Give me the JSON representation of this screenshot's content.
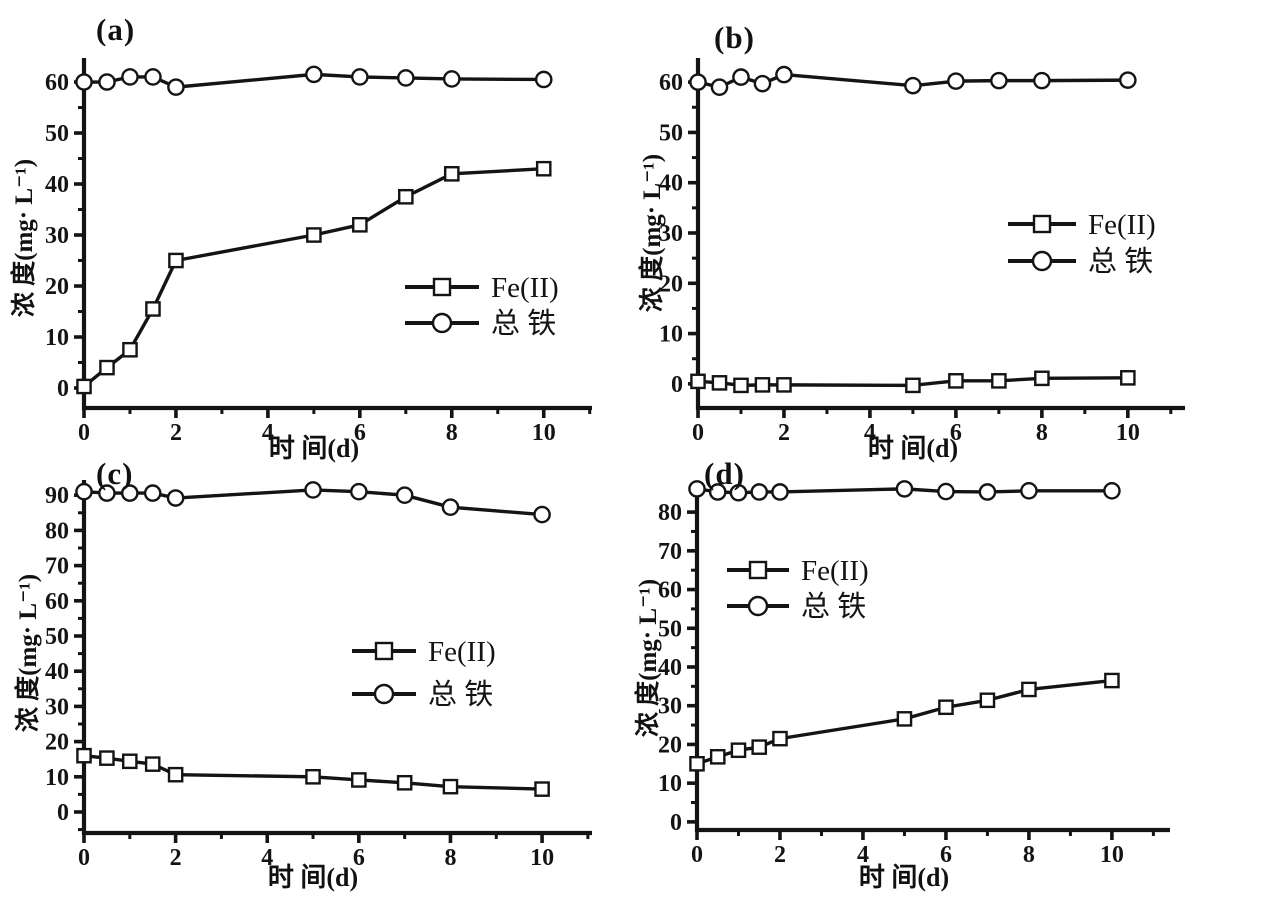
{
  "figure": {
    "background_color": "#ffffff",
    "line_color": "#141414",
    "marker_fill": "#ffffff"
  },
  "chart_data": [
    {
      "id": "a",
      "type": "line",
      "panel_label": "(a)",
      "xlabel": "时 间(d)",
      "ylabel": "浓 度(mg· L⁻¹)",
      "x": [
        0,
        0.5,
        1,
        1.5,
        2,
        5,
        6,
        7,
        8,
        10
      ],
      "series": [
        {
          "name": "Fe(II)",
          "key": "feii",
          "marker": "square",
          "values": [
            0.3,
            4,
            7.5,
            15.5,
            25,
            30,
            32,
            37.5,
            42,
            43
          ]
        },
        {
          "name": "总 铁",
          "key": "total-iron",
          "marker": "circle",
          "values": [
            60,
            60,
            61,
            61,
            59,
            61.5,
            61,
            60.8,
            60.6,
            60.5
          ]
        }
      ],
      "xlim": [
        0,
        11.05
      ],
      "ylim": [
        -3.92,
        64.71
      ],
      "x_major_ticks": [
        0,
        2,
        4,
        6,
        8,
        10
      ],
      "x_minor_ticks": [
        1,
        3,
        5,
        7,
        9,
        11
      ],
      "y_major_ticks": [
        0,
        10,
        20,
        30,
        40,
        50,
        60
      ],
      "y_minor_step": 5,
      "grid": false,
      "legend_position": "center-right"
    },
    {
      "id": "b",
      "type": "line",
      "panel_label": "(b)",
      "xlabel": "时 间(d)",
      "ylabel": "浓 度(mg· L⁻¹)",
      "x": [
        0,
        0.5,
        1,
        1.5,
        2,
        5,
        6,
        7,
        8,
        10
      ],
      "series": [
        {
          "name": "Fe(II)",
          "key": "feii",
          "marker": "square",
          "values": [
            0.5,
            0.2,
            -0.3,
            -0.2,
            -0.2,
            -0.3,
            0.6,
            0.6,
            1.1,
            1.2
          ]
        },
        {
          "name": "总 铁",
          "key": "total-iron",
          "marker": "circle",
          "values": [
            60,
            59,
            61,
            59.7,
            61.5,
            59.3,
            60.2,
            60.3,
            60.3,
            60.4
          ]
        }
      ],
      "xlim": [
        0,
        11.33
      ],
      "ylim": [
        -4.8,
        64.8
      ],
      "x_major_ticks": [
        0,
        2,
        4,
        6,
        8,
        10
      ],
      "x_minor_ticks": [
        1,
        3,
        5,
        7,
        9,
        11
      ],
      "y_major_ticks": [
        0,
        10,
        20,
        30,
        40,
        50,
        60
      ],
      "y_minor_step": 5,
      "grid": false,
      "legend_position": "center-right"
    },
    {
      "id": "c",
      "type": "line",
      "panel_label": "(c)",
      "xlabel": "时 间(d)",
      "ylabel": "浓 度(mg· L⁻¹)",
      "x": [
        0,
        0.5,
        1,
        1.5,
        2,
        5,
        6,
        7,
        8,
        10
      ],
      "series": [
        {
          "name": "Fe(II)",
          "key": "feii",
          "marker": "square",
          "values": [
            16,
            15.3,
            14.4,
            13.6,
            10.6,
            10,
            9.1,
            8.3,
            7.2,
            6.5
          ]
        },
        {
          "name": "总 铁",
          "key": "total-iron",
          "marker": "circle",
          "values": [
            91,
            90.6,
            90.6,
            90.6,
            89.2,
            91.5,
            91,
            90,
            86.6,
            84.5
          ]
        }
      ],
      "xlim": [
        0,
        11.09
      ],
      "ylim": [
        -5.97,
        94.32
      ],
      "x_major_ticks": [
        0,
        2,
        4,
        6,
        8,
        10
      ],
      "x_minor_ticks": [
        1,
        3,
        5,
        7,
        9,
        11
      ],
      "y_major_ticks": [
        0,
        10,
        20,
        30,
        40,
        50,
        60,
        70,
        80,
        90
      ],
      "y_minor_step": 5,
      "grid": false,
      "legend_position": "center-right"
    },
    {
      "id": "d",
      "type": "line",
      "panel_label": "(d)",
      "xlabel": "时 间(d)",
      "ylabel": "浓 度(mg· L⁻¹)",
      "x": [
        0,
        0.5,
        1,
        1.5,
        2,
        5,
        6,
        7,
        8,
        10
      ],
      "series": [
        {
          "name": "Fe(II)",
          "key": "feii",
          "marker": "square",
          "values": [
            15,
            16.8,
            18.5,
            19.3,
            21.5,
            26.6,
            29.6,
            31.4,
            34.2,
            36.5
          ]
        },
        {
          "name": "总 铁",
          "key": "total-iron",
          "marker": "circle",
          "values": [
            86,
            85.2,
            85,
            85.2,
            85.2,
            86,
            85.3,
            85.2,
            85.5,
            85.5
          ]
        }
      ],
      "xlim": [
        0,
        11.4
      ],
      "ylim": [
        -2.1,
        87.0
      ],
      "x_major_ticks": [
        0,
        2,
        4,
        6,
        8,
        10
      ],
      "x_minor_ticks": [
        1,
        3,
        5,
        7,
        9,
        11
      ],
      "y_major_ticks": [
        0,
        10,
        20,
        30,
        40,
        50,
        60,
        70,
        80
      ],
      "y_minor_step": 5,
      "grid": false,
      "legend_position": "upper-left"
    }
  ]
}
